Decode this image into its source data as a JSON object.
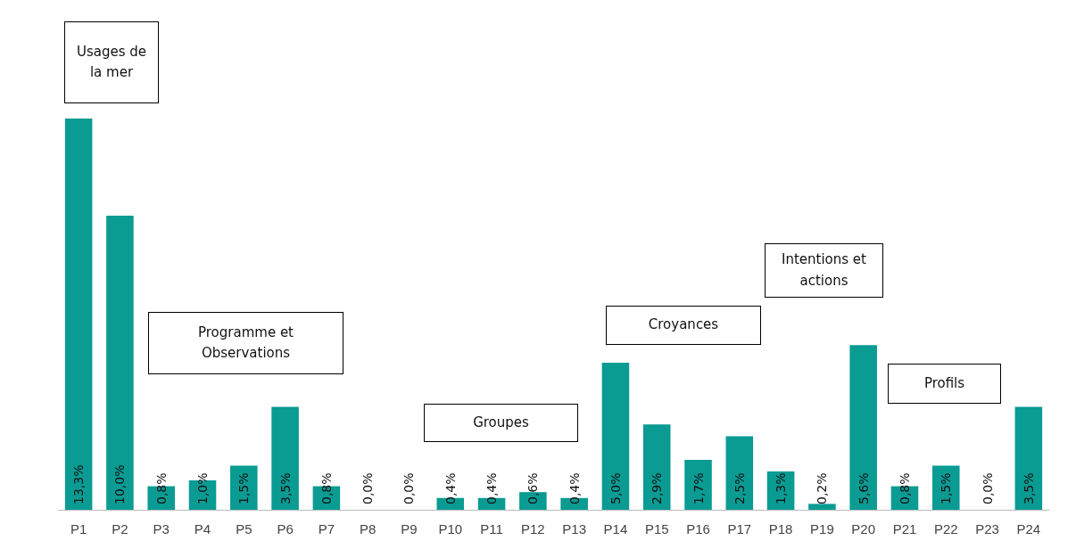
{
  "chart_data": {
    "type": "bar",
    "categories": [
      "P1",
      "P2",
      "P3",
      "P4",
      "P5",
      "P6",
      "P7",
      "P8",
      "P9",
      "P10",
      "P11",
      "P12",
      "P13",
      "P14",
      "P15",
      "P16",
      "P17",
      "P18",
      "P19",
      "P20",
      "P21",
      "P22",
      "P23",
      "P24"
    ],
    "values": [
      13.3,
      10.0,
      0.8,
      1.0,
      1.5,
      3.5,
      0.8,
      0.0,
      0.0,
      0.4,
      0.4,
      0.6,
      0.4,
      5.0,
      2.9,
      1.7,
      2.5,
      1.3,
      0.2,
      5.6,
      0.8,
      1.5,
      0.0,
      3.5
    ],
    "value_labels": [
      "13,3%",
      "10,0%",
      "0,8%",
      "1,0%",
      "1,5%",
      "3,5%",
      "0,8%",
      "0,0%",
      "0,0%",
      "0,4%",
      "0,4%",
      "0,6%",
      "0,4%",
      "5,0%",
      "2,9%",
      "1,7%",
      "2,5%",
      "1,3%",
      "0,2%",
      "5,6%",
      "0,8%",
      "1,5%",
      "0,0%",
      "3,5%"
    ],
    "color": "#0a9b93",
    "annotations": [
      "Usages de la mer",
      "Programme et Observations",
      "Groupes",
      "Croyances",
      "Intentions et actions",
      "Profils"
    ],
    "grid": false
  }
}
